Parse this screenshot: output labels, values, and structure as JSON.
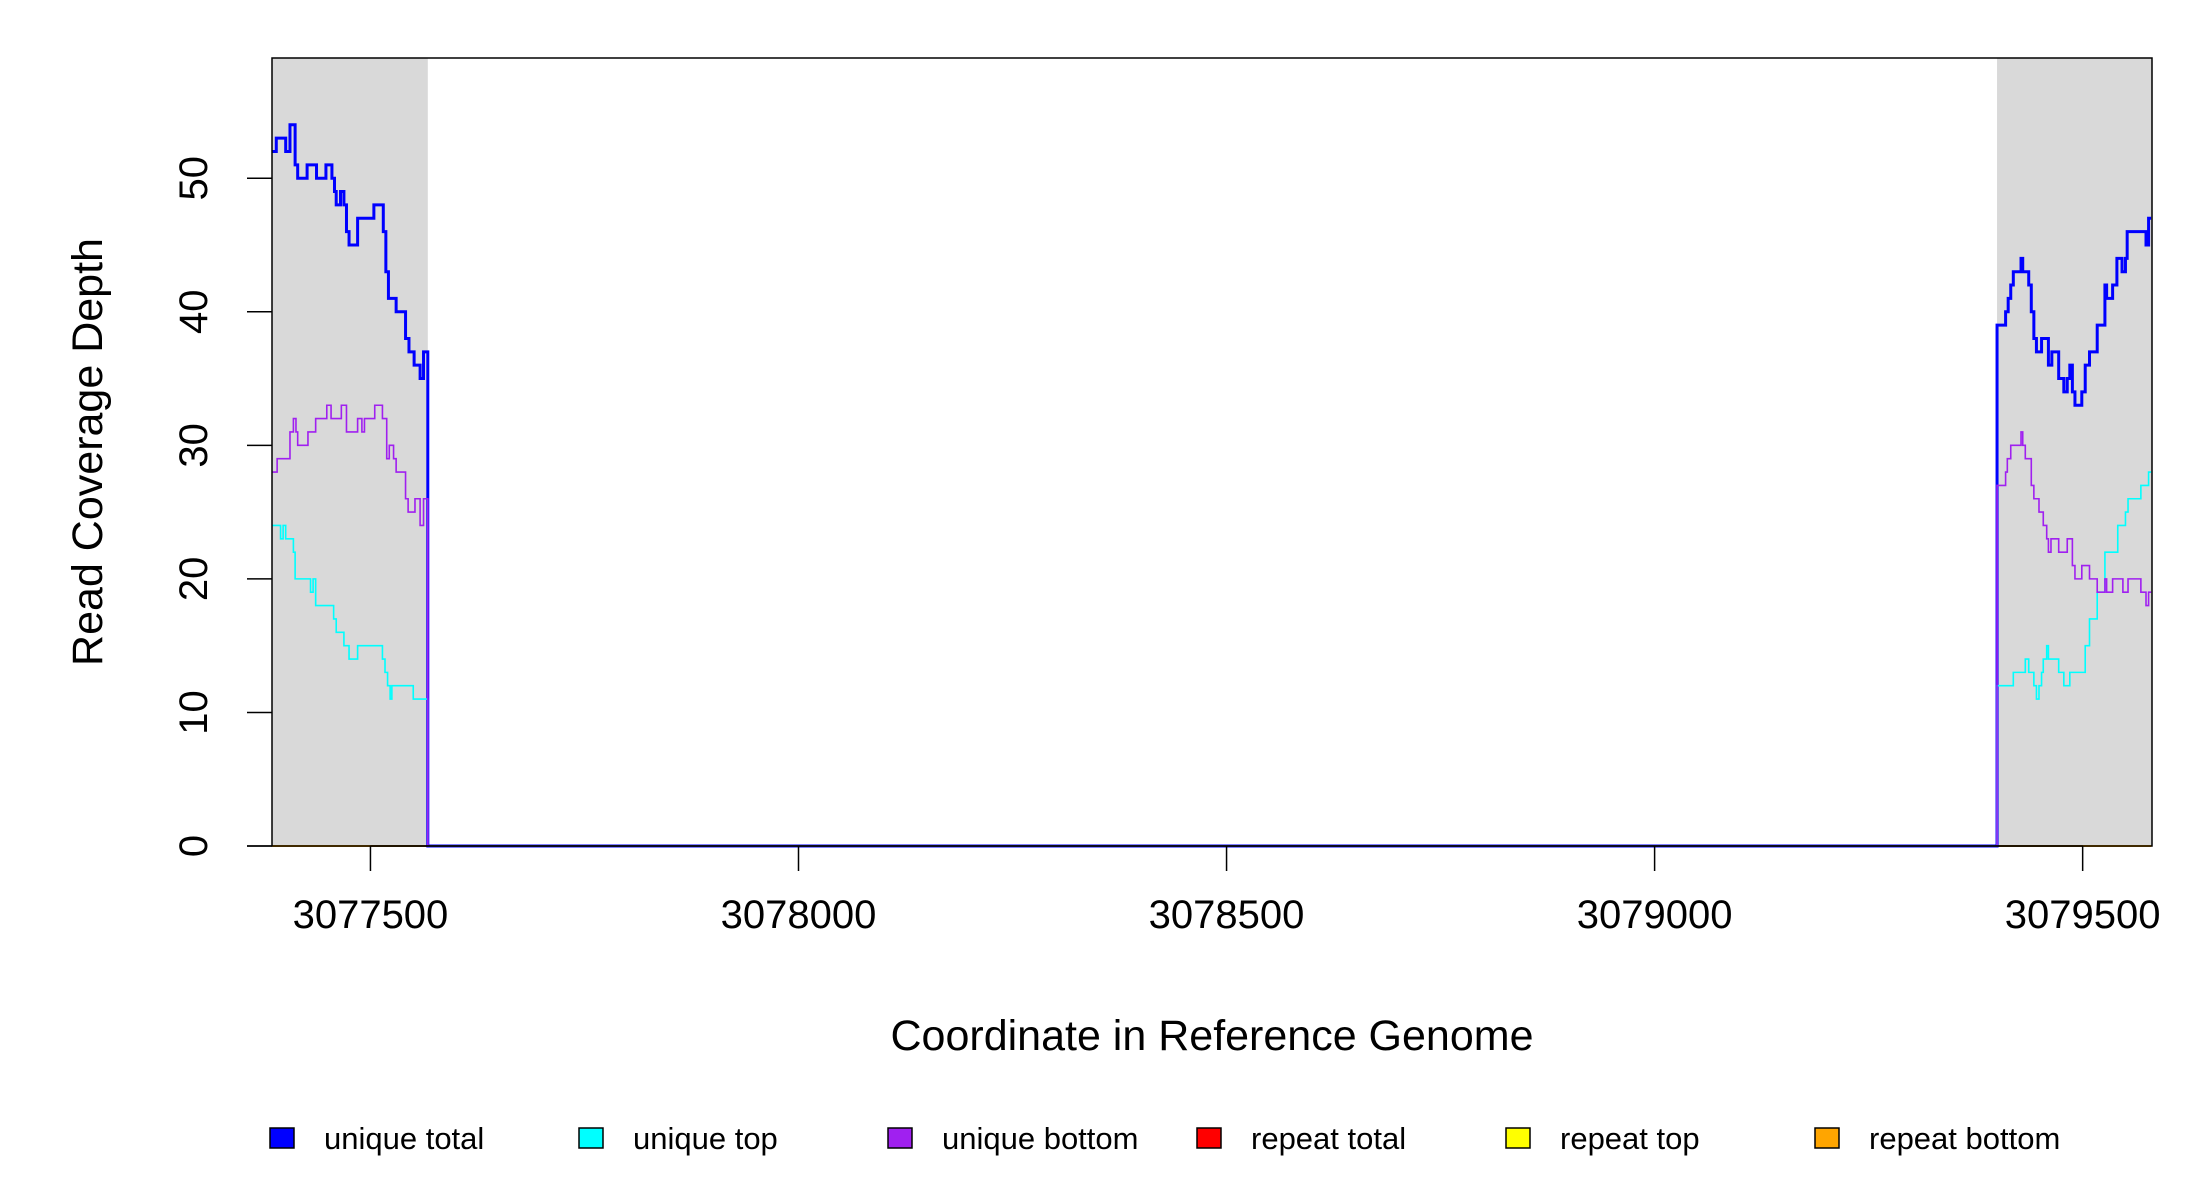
{
  "chart_data": {
    "type": "line",
    "title": "",
    "xlabel": "Coordinate in Reference Genome",
    "ylabel": "Read Coverage Depth",
    "xlim": [
      3077385,
      3079581
    ],
    "ylim": [
      0,
      59
    ],
    "xticks": [
      3077500,
      3078000,
      3078500,
      3079000,
      3079500
    ],
    "yticks": [
      0,
      10,
      20,
      30,
      40,
      50
    ],
    "grid": false,
    "legend_position": "bottom",
    "shaded_regions": [
      [
        3077385,
        3077567
      ],
      [
        3079400,
        3079581
      ]
    ],
    "shade_color": "#d9d9d9",
    "series": [
      {
        "name": "unique total",
        "color": "#0000ff",
        "step": true,
        "points": [
          [
            3077385,
            52
          ],
          [
            3077390,
            53
          ],
          [
            3077401,
            52
          ],
          [
            3077406,
            54
          ],
          [
            3077412,
            51
          ],
          [
            3077415,
            50
          ],
          [
            3077426,
            51
          ],
          [
            3077437,
            50
          ],
          [
            3077448,
            51
          ],
          [
            3077455,
            50
          ],
          [
            3077458,
            49
          ],
          [
            3077460,
            48
          ],
          [
            3077465,
            49
          ],
          [
            3077469,
            48
          ],
          [
            3077472,
            46
          ],
          [
            3077475,
            45
          ],
          [
            3077485,
            47
          ],
          [
            3077504,
            48
          ],
          [
            3077515,
            46
          ],
          [
            3077518,
            43
          ],
          [
            3077521,
            41
          ],
          [
            3077530,
            40
          ],
          [
            3077541,
            38
          ],
          [
            3077545,
            37
          ],
          [
            3077551,
            36
          ],
          [
            3077558,
            35
          ],
          [
            3077562,
            37
          ],
          [
            3077567,
            0
          ],
          [
            3079400,
            39
          ],
          [
            3079410,
            40
          ],
          [
            3079413,
            41
          ],
          [
            3079416,
            42
          ],
          [
            3079419,
            43
          ],
          [
            3079428,
            44
          ],
          [
            3079430,
            43
          ],
          [
            3079437,
            42
          ],
          [
            3079440,
            40
          ],
          [
            3079443,
            38
          ],
          [
            3079446,
            37
          ],
          [
            3079452,
            38
          ],
          [
            3079460,
            36
          ],
          [
            3079464,
            37
          ],
          [
            3079472,
            35
          ],
          [
            3079478,
            34
          ],
          [
            3079482,
            35
          ],
          [
            3079485,
            36
          ],
          [
            3079488,
            34
          ],
          [
            3079491,
            33
          ],
          [
            3079499,
            34
          ],
          [
            3079503,
            36
          ],
          [
            3079508,
            37
          ],
          [
            3079517,
            39
          ],
          [
            3079526,
            42
          ],
          [
            3079528,
            41
          ],
          [
            3079535,
            42
          ],
          [
            3079540,
            44
          ],
          [
            3079546,
            43
          ],
          [
            3079550,
            44
          ],
          [
            3079552,
            46
          ],
          [
            3079574,
            45
          ],
          [
            3079577,
            47
          ],
          [
            3079580,
            47
          ]
        ]
      },
      {
        "name": "unique top",
        "color": "#00ffff",
        "step": true,
        "points": [
          [
            3077385,
            24
          ],
          [
            3077395,
            23
          ],
          [
            3077398,
            24
          ],
          [
            3077401,
            23
          ],
          [
            3077410,
            22
          ],
          [
            3077412,
            20
          ],
          [
            3077430,
            19
          ],
          [
            3077433,
            20
          ],
          [
            3077436,
            18
          ],
          [
            3077457,
            17
          ],
          [
            3077460,
            16
          ],
          [
            3077469,
            15
          ],
          [
            3077475,
            14
          ],
          [
            3077485,
            15
          ],
          [
            3077514,
            14
          ],
          [
            3077517,
            13
          ],
          [
            3077520,
            12
          ],
          [
            3077523,
            11
          ],
          [
            3077525,
            12
          ],
          [
            3077550,
            11
          ],
          [
            3077567,
            0
          ],
          [
            3079400,
            12
          ],
          [
            3079419,
            13
          ],
          [
            3079433,
            14
          ],
          [
            3079437,
            13
          ],
          [
            3079443,
            12
          ],
          [
            3079446,
            11
          ],
          [
            3079449,
            12
          ],
          [
            3079452,
            13
          ],
          [
            3079454,
            14
          ],
          [
            3079458,
            15
          ],
          [
            3079460,
            14
          ],
          [
            3079472,
            13
          ],
          [
            3079478,
            12
          ],
          [
            3079485,
            13
          ],
          [
            3079503,
            15
          ],
          [
            3079508,
            17
          ],
          [
            3079517,
            19
          ],
          [
            3079526,
            22
          ],
          [
            3079541,
            24
          ],
          [
            3079550,
            25
          ],
          [
            3079553,
            26
          ],
          [
            3079568,
            27
          ],
          [
            3079577,
            28
          ],
          [
            3079580,
            28
          ]
        ]
      },
      {
        "name": "unique bottom",
        "color": "#a020f0",
        "step": true,
        "points": [
          [
            3077385,
            28
          ],
          [
            3077391,
            29
          ],
          [
            3077406,
            31
          ],
          [
            3077410,
            32
          ],
          [
            3077413,
            31
          ],
          [
            3077415,
            30
          ],
          [
            3077427,
            31
          ],
          [
            3077436,
            32
          ],
          [
            3077449,
            33
          ],
          [
            3077454,
            32
          ],
          [
            3077466,
            33
          ],
          [
            3077472,
            31
          ],
          [
            3077485,
            32
          ],
          [
            3077490,
            31
          ],
          [
            3077493,
            32
          ],
          [
            3077505,
            33
          ],
          [
            3077514,
            32
          ],
          [
            3077519,
            29
          ],
          [
            3077522,
            30
          ],
          [
            3077527,
            29
          ],
          [
            3077530,
            28
          ],
          [
            3077541,
            26
          ],
          [
            3077544,
            25
          ],
          [
            3077552,
            26
          ],
          [
            3077558,
            24
          ],
          [
            3077562,
            26
          ],
          [
            3077567,
            0
          ],
          [
            3079400,
            27
          ],
          [
            3079410,
            28
          ],
          [
            3079412,
            29
          ],
          [
            3079416,
            30
          ],
          [
            3079428,
            31
          ],
          [
            3079430,
            30
          ],
          [
            3079433,
            29
          ],
          [
            3079440,
            27
          ],
          [
            3079443,
            26
          ],
          [
            3079449,
            25
          ],
          [
            3079454,
            24
          ],
          [
            3079458,
            23
          ],
          [
            3079460,
            22
          ],
          [
            3079463,
            23
          ],
          [
            3079472,
            22
          ],
          [
            3079482,
            23
          ],
          [
            3079488,
            21
          ],
          [
            3079491,
            20
          ],
          [
            3079499,
            21
          ],
          [
            3079508,
            20
          ],
          [
            3079517,
            19
          ],
          [
            3079526,
            20
          ],
          [
            3079528,
            19
          ],
          [
            3079535,
            20
          ],
          [
            3079547,
            19
          ],
          [
            3079553,
            20
          ],
          [
            3079568,
            19
          ],
          [
            3079574,
            18
          ],
          [
            3079577,
            19
          ],
          [
            3079580,
            19
          ]
        ]
      },
      {
        "name": "repeat total",
        "color": "#ff0000",
        "step": true,
        "segments": [
          [
            [
              3077385,
              0
            ],
            [
              3077567,
              0
            ]
          ],
          [
            [
              3079400,
              0
            ],
            [
              3079580,
              0
            ]
          ]
        ]
      },
      {
        "name": "repeat top",
        "color": "#ffff00",
        "step": true,
        "segments": [
          [
            [
              3077385,
              0
            ],
            [
              3077567,
              0
            ]
          ],
          [
            [
              3079400,
              0
            ],
            [
              3079580,
              0
            ]
          ]
        ]
      },
      {
        "name": "repeat bottom",
        "color": "#ffa500",
        "step": true,
        "segments": [
          [
            [
              3077385,
              0
            ],
            [
              3077567,
              0
            ]
          ],
          [
            [
              3079400,
              0
            ],
            [
              3079580,
              0
            ]
          ]
        ]
      }
    ]
  }
}
